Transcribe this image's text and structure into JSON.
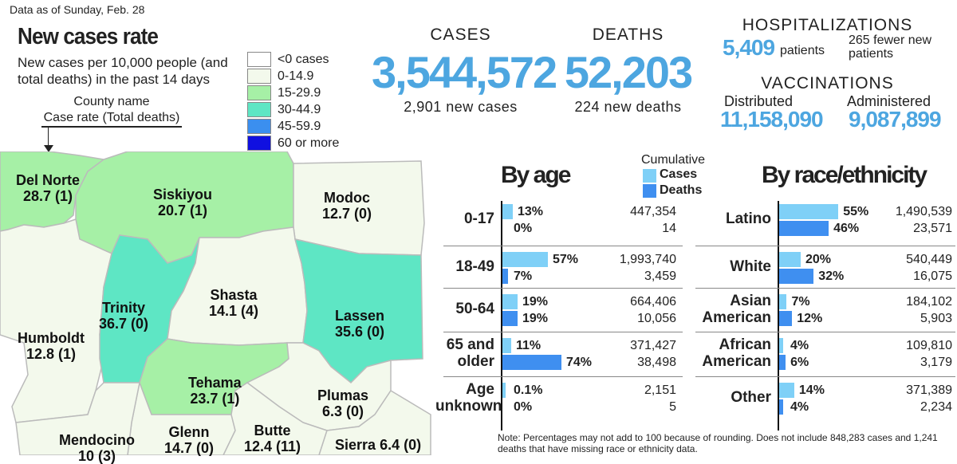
{
  "header": {
    "dateline": "Data as of Sunday, Feb. 28",
    "map_title": "New cases rate",
    "map_subtitle": "New cases per 10,000 people (and total deaths) in the past 14 days",
    "key_line1": "County name",
    "key_line2": "Case rate (Total deaths)"
  },
  "legend": [
    {
      "label": "<0 cases",
      "color": "#ffffff"
    },
    {
      "label": "0-14.9",
      "color": "#f3f9ec"
    },
    {
      "label": "15-29.9",
      "color": "#a6f0a6"
    },
    {
      "label": "30-44.9",
      "color": "#5ee6c4"
    },
    {
      "label": "45-59.9",
      "color": "#3b8fef"
    },
    {
      "label": "60 or more",
      "color": "#1010e0"
    }
  ],
  "counties": [
    {
      "name": "Del Norte",
      "value": "28.7 (1)"
    },
    {
      "name": "Siskiyou",
      "value": "20.7 (1)"
    },
    {
      "name": "Modoc",
      "value": "12.7 (0)"
    },
    {
      "name": "Trinity",
      "value": "36.7 (0)"
    },
    {
      "name": "Shasta",
      "value": "14.1 (4)"
    },
    {
      "name": "Lassen",
      "value": "35.6 (0)"
    },
    {
      "name": "Humboldt",
      "value": "12.8 (1)"
    },
    {
      "name": "Tehama",
      "value": "23.7 (1)"
    },
    {
      "name": "Plumas",
      "value": "6.3 (0)"
    },
    {
      "name": "Glenn",
      "value": "14.7 (0)"
    },
    {
      "name": "Butte",
      "value": "12.4 (11)"
    },
    {
      "name": "Mendocino",
      "value": "10 (3)"
    },
    {
      "name": "Sierra",
      "value": "6.4 (0)"
    }
  ],
  "stats": {
    "cases_label": "CASES",
    "cases_total": "3,544,572",
    "cases_new": "2,901 new cases",
    "deaths_label": "DEATHS",
    "deaths_total": "52,203",
    "deaths_new": "224 new deaths",
    "hosp_label": "HOSPITALIZATIONS",
    "hosp_value": "5,409",
    "hosp_unit": "patients",
    "hosp_change": "265 fewer new patients",
    "vacc_label": "VACCINATIONS",
    "vacc_dist_label": "Distributed",
    "vacc_dist_value": "11,158,090",
    "vacc_admin_label": "Administered",
    "vacc_admin_value": "9,087,899"
  },
  "breakdown_legend": {
    "title": "Cumulative",
    "cases": "Cases",
    "deaths": "Deaths",
    "cases_color": "#7fd0f7",
    "deaths_color": "#3f8ff0"
  },
  "chart_data": [
    {
      "type": "bar",
      "title": "By age",
      "categories": [
        "0-17",
        "18-49",
        "50-64",
        "65 and older",
        "Age unknown"
      ],
      "series": [
        {
          "name": "Cases",
          "values": [
            13,
            57,
            19,
            11,
            0.1
          ],
          "labels": [
            "13%",
            "57%",
            "19%",
            "11%",
            "0.1%"
          ],
          "counts": [
            "447,354",
            "1,993,740",
            "664,406",
            "371,427",
            "2,151"
          ]
        },
        {
          "name": "Deaths",
          "values": [
            0,
            7,
            19,
            74,
            0
          ],
          "labels": [
            "0%",
            "7%",
            "19%",
            "74%",
            "0%"
          ],
          "counts": [
            "14",
            "3,459",
            "10,056",
            "38,498",
            "5"
          ]
        }
      ]
    },
    {
      "type": "bar",
      "title": "By race/ethnicity",
      "categories": [
        "Latino",
        "White",
        "Asian American",
        "African American",
        "Other"
      ],
      "series": [
        {
          "name": "Cases",
          "values": [
            55,
            20,
            7,
            4,
            14
          ],
          "labels": [
            "55%",
            "20%",
            "7%",
            "4%",
            "14%"
          ],
          "counts": [
            "1,490,539",
            "540,449",
            "184,102",
            "109,810",
            "371,389"
          ]
        },
        {
          "name": "Deaths",
          "values": [
            46,
            32,
            12,
            6,
            4
          ],
          "labels": [
            "46%",
            "32%",
            "12%",
            "6%",
            "4%"
          ],
          "counts": [
            "23,571",
            "16,075",
            "5,903",
            "3,179",
            "2,234"
          ]
        }
      ]
    }
  ],
  "note": "Note: Percentages may not add to 100 because of rounding. Does not include 848,283 cases and 1,241 deaths that have missing race or ethnicity data."
}
